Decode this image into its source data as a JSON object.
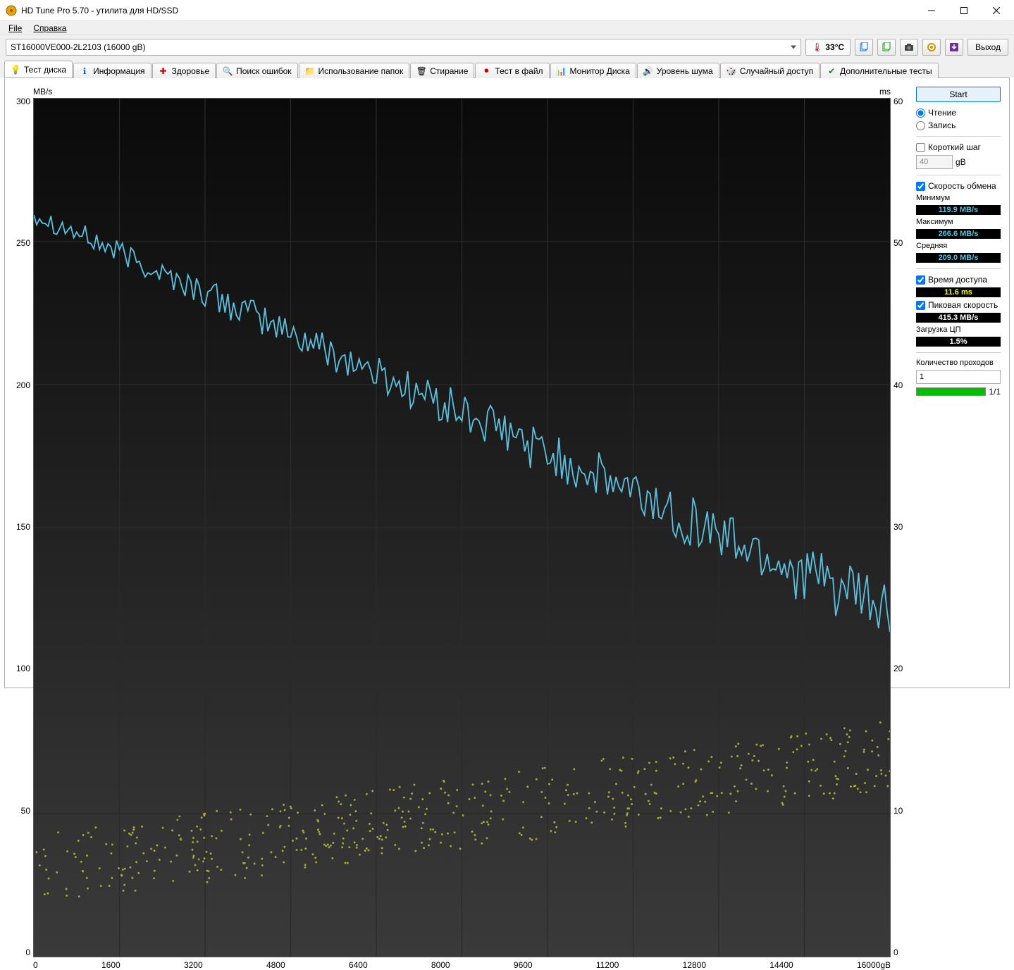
{
  "window": {
    "title": "HD Tune Pro 5.70 - утилита для HD/SSD"
  },
  "menu": {
    "file": "File",
    "help": "Справка"
  },
  "toolbar": {
    "drive": "ST16000VE000-2L2103 (16000 gB)",
    "temp": "33°C",
    "exit": "Выход"
  },
  "tabs": {
    "benchmark": "Тест диска",
    "info": "Информация",
    "health": "Здоровье",
    "errorscan": "Поиск ошибок",
    "folderusage": "Использование папок",
    "erase": "Стирание",
    "filebench": "Тест в файл",
    "diskmonitor": "Монитор Диска",
    "aam": "Уровень шума",
    "random": "Случайный доступ",
    "extra": "Дополнительные тесты"
  },
  "chart": {
    "unit_left": "MB/s",
    "unit_right": "ms",
    "x_unit": "gB",
    "y_left_max": 300,
    "y_left_step": 50,
    "y_right_max": 60,
    "y_right_step": 10,
    "x_max": 16000,
    "x_step": 1600,
    "line_color": "#5bc0de",
    "scatter_color": "#a8a838",
    "grid_color": "#2a2a2a",
    "bg_top": "#0a0a0a",
    "bg_bottom": "#3a3a3a",
    "transfer_start": 260,
    "transfer_end": 120,
    "transfer_noise": 15,
    "scatter_count": 500,
    "scatter_ms_base_start": 5,
    "scatter_ms_base_end": 13,
    "scatter_ms_spread": 5
  },
  "panel": {
    "start": "Start",
    "read": "Чтение",
    "write": "Запись",
    "shortstroke": "Короткий шаг",
    "shortstroke_val": "40",
    "shortstroke_unit": "gB",
    "transferrate": "Скорость обмена",
    "min_label": "Минимум",
    "min_val": "119.9 MB/s",
    "max_label": "Максимум",
    "max_val": "266.6 MB/s",
    "avg_label": "Средняя",
    "avg_val": "209.0 MB/s",
    "access_label": "Время доступа",
    "access_val": "11.6 ms",
    "burst_label": "Пиковая скорость",
    "burst_val": "415.3 MB/s",
    "cpu_label": "Загрузка ЦП",
    "cpu_val": "1.5%",
    "passes_label": "Количество проходов",
    "passes_val": "1",
    "progress_text": "1/1"
  }
}
